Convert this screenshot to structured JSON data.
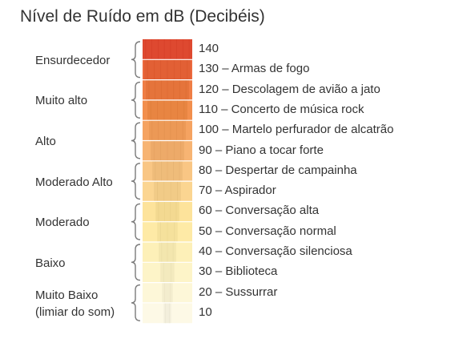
{
  "title": "Nível de Ruído em dB (Decibéis)",
  "categories": [
    {
      "lines": [
        "Ensurdecedor"
      ]
    },
    {
      "lines": [
        "Muito alto"
      ]
    },
    {
      "lines": [
        "Alto"
      ]
    },
    {
      "lines": [
        "Moderado Alto"
      ]
    },
    {
      "lines": [
        "Moderado"
      ]
    },
    {
      "lines": [
        "Baixo"
      ]
    },
    {
      "lines": [
        "Muito Baixo",
        "(limiar do som)"
      ]
    }
  ],
  "levels": [
    {
      "text": "140",
      "color": "#e8533a"
    },
    {
      "text": "130 – Armas de fogo",
      "color": "#ec6a3f"
    },
    {
      "text": "120 – Descolagem de avião a jato",
      "color": "#ef7e45"
    },
    {
      "text": "110 – Concerto de música rock",
      "color": "#f28f4d"
    },
    {
      "text": "100 – Martelo perfurador de alcatrão",
      "color": "#f5a361"
    },
    {
      "text": "90 – Piano a tocar forte",
      "color": "#f7b473"
    },
    {
      "text": "80 – Despertar de campainha",
      "color": "#f9c684"
    },
    {
      "text": "70 – Aspirador",
      "color": "#fbd591"
    },
    {
      "text": "60 – Conversação alta",
      "color": "#fde39b"
    },
    {
      "text": "50 – Conversação normal",
      "color": "#feeaa6"
    },
    {
      "text": "40 – Conversação silenciosa",
      "color": "#fdf0b8"
    },
    {
      "text": "30 – Biblioteca",
      "color": "#fdf4c8"
    },
    {
      "text": "20 – Sussurrar",
      "color": "#fdf7d8"
    },
    {
      "text": "10",
      "color": "#fdf9e6"
    }
  ],
  "colors": {
    "bracket": "#7a7a7a",
    "text": "#333333",
    "separator": "#ffffff"
  }
}
